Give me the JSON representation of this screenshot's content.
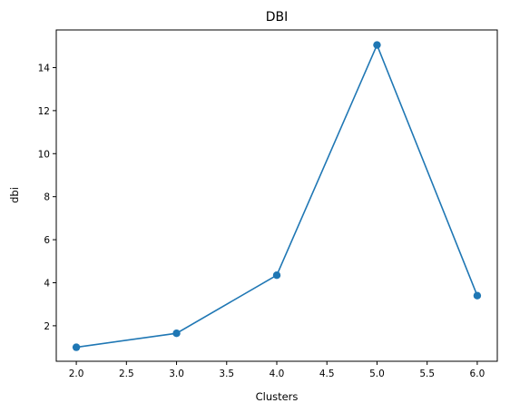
{
  "chart_data": {
    "type": "line",
    "title": "DBI",
    "xlabel": "Clusters",
    "ylabel": "dbi",
    "x": [
      2.0,
      3.0,
      4.0,
      5.0,
      6.0
    ],
    "series": [
      {
        "values": [
          1.0,
          1.65,
          4.35,
          15.05,
          3.4
        ],
        "color": "#1f77b4",
        "marker": "circle"
      }
    ],
    "xlim": [
      1.8,
      6.2
    ],
    "ylim": [
      0.35,
      15.75
    ],
    "xticks": [
      "2.0",
      "2.5",
      "3.0",
      "3.5",
      "4.0",
      "4.5",
      "5.0",
      "5.5",
      "6.0"
    ],
    "yticks": [
      "2",
      "4",
      "6",
      "8",
      "10",
      "12",
      "14"
    ],
    "grid": false,
    "legend": "none"
  }
}
